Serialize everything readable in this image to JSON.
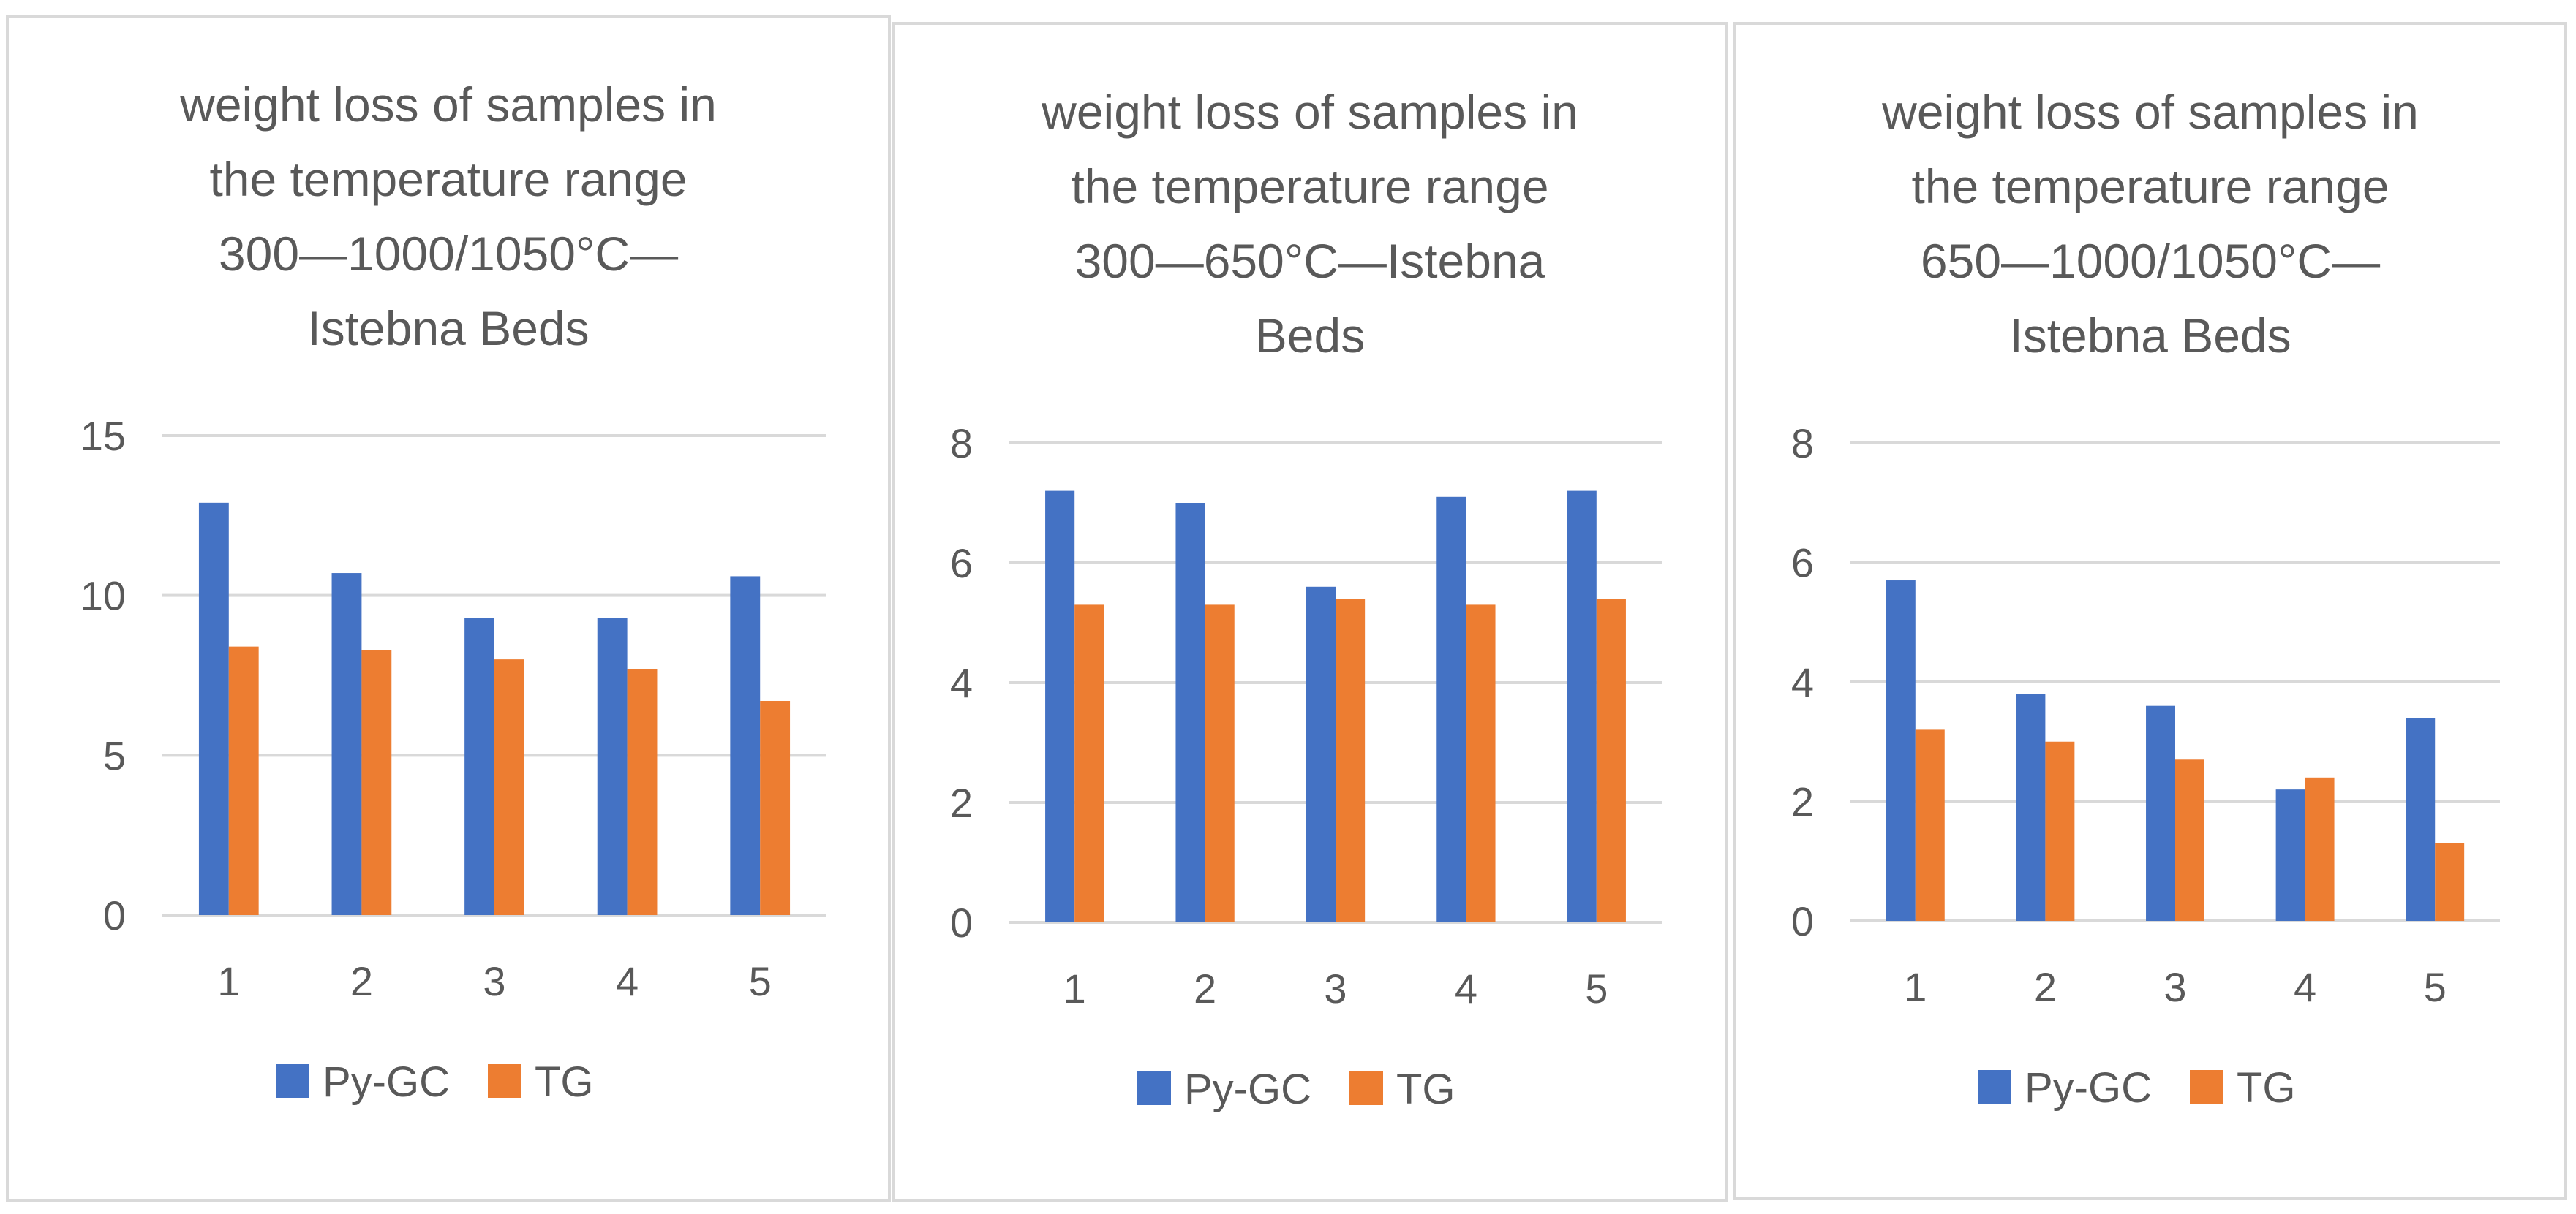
{
  "colors": {
    "py_gc": "#4472c4",
    "tg": "#ed7d31",
    "gridline": "#d9d9d9",
    "text": "#595959"
  },
  "chart_data": [
    {
      "type": "bar",
      "title_lines": [
        "weight loss of samples in",
        "the temperature range",
        "300—1000/1050°C—",
        "Istebna Beds"
      ],
      "categories": [
        "1",
        "2",
        "3",
        "4",
        "5"
      ],
      "series": [
        {
          "name": "Py-GC",
          "values": [
            12.9,
            10.7,
            9.3,
            9.3,
            10.6
          ]
        },
        {
          "name": "TG",
          "values": [
            8.4,
            8.3,
            8.0,
            7.7,
            6.7
          ]
        }
      ],
      "yticks": [
        "0",
        "5",
        "10",
        "15"
      ],
      "ylim": [
        0,
        15
      ],
      "legend": [
        "Py-GC",
        "TG"
      ],
      "legend_position": "bottom"
    },
    {
      "type": "bar",
      "title_lines": [
        "weight loss of samples in",
        "the temperature range",
        "300—650°C—Istebna",
        "Beds"
      ],
      "categories": [
        "1",
        "2",
        "3",
        "4",
        "5"
      ],
      "series": [
        {
          "name": "Py-GC",
          "values": [
            7.2,
            7.0,
            5.6,
            7.1,
            7.2
          ]
        },
        {
          "name": "TG",
          "values": [
            5.3,
            5.3,
            5.4,
            5.3,
            5.4
          ]
        }
      ],
      "yticks": [
        "0",
        "2",
        "4",
        "6",
        "8"
      ],
      "ylim": [
        0,
        8
      ],
      "legend": [
        "Py-GC",
        "TG"
      ],
      "legend_position": "bottom"
    },
    {
      "type": "bar",
      "title_lines": [
        "weight loss of samples in",
        "the temperature range",
        "650—1000/1050°C—",
        "Istebna Beds"
      ],
      "categories": [
        "1",
        "2",
        "3",
        "4",
        "5"
      ],
      "series": [
        {
          "name": "Py-GC",
          "values": [
            5.7,
            3.8,
            3.6,
            2.2,
            3.4
          ]
        },
        {
          "name": "TG",
          "values": [
            3.2,
            3.0,
            2.7,
            2.4,
            1.3
          ]
        }
      ],
      "yticks": [
        "0",
        "2",
        "4",
        "6",
        "8"
      ],
      "ylim": [
        0,
        8
      ],
      "legend": [
        "Py-GC",
        "TG"
      ],
      "legend_position": "bottom"
    }
  ]
}
